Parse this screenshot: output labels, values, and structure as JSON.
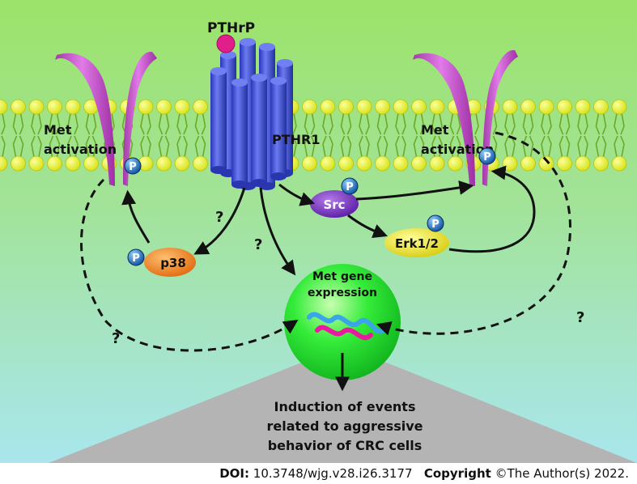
{
  "diagram": {
    "ligand_label": "PTHrP",
    "receptor_label": "PTHR1",
    "met_left_label_line1": "Met",
    "met_left_label_line2": "activation",
    "met_right_label_line1": "Met",
    "met_right_label_line2": "activation",
    "phospho_symbol": "P",
    "src_label": "Src",
    "erk_label": "Erk1/2",
    "p38_label": "p38",
    "question_mark": "?",
    "gene_label_line1": "Met gene",
    "gene_label_line2": "expression",
    "outcome_line1": "Induction of events",
    "outcome_line2": "related to aggressive",
    "outcome_line3": "behavior of CRC cells"
  },
  "footer": {
    "doi_label": "DOI:",
    "doi_value": "10.3748/wjg.v28.i26.3177",
    "copyright_label": "Copyright",
    "copyright_value": "©The Author(s) 2022."
  },
  "colors": {
    "background_top": "#9be36a",
    "background_bottom": "#a9e6ee",
    "lipid_head": "#e5ef2a",
    "met_receptor": "#c94fd0",
    "pthr1": "#3d4fd6",
    "phospho": "#1a72c4",
    "src": "#7a2fc4",
    "erk": "#f0e81f",
    "p38": "#f08a2c",
    "gene_sphere": "#22e030"
  }
}
